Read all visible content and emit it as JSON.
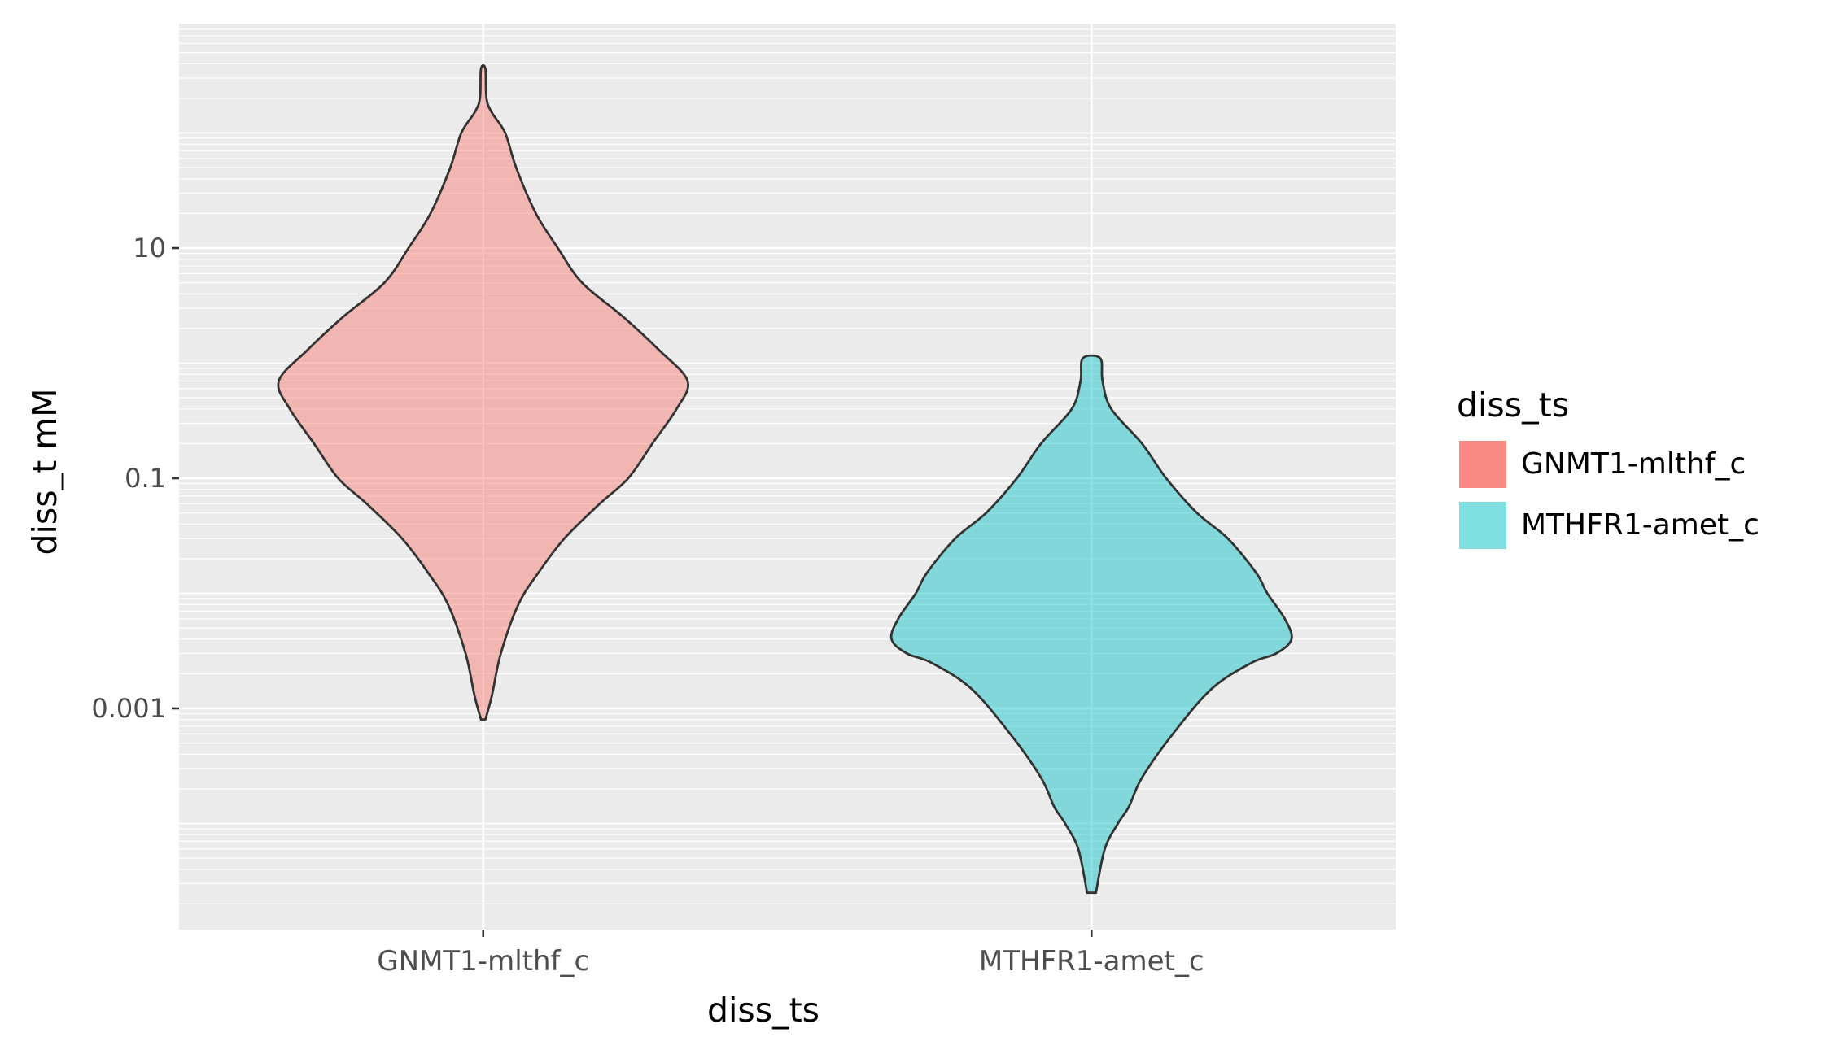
{
  "chart_data": {
    "type": "violin",
    "title": "",
    "xlabel": "diss_ts",
    "ylabel": "diss_t mM",
    "y_scale": "log10",
    "ylim": [
      1e-05,
      1000
    ],
    "y_ticks": [
      {
        "value": 10,
        "label": "10"
      },
      {
        "value": 0.1,
        "label": "0.1"
      },
      {
        "value": 0.001,
        "label": "0.001"
      }
    ],
    "categories": [
      "GNMT1-mlthf_c",
      "MTHFR1-amet_c"
    ],
    "legend": {
      "title": "diss_ts",
      "position": "right"
    },
    "series": [
      {
        "name": "GNMT1-mlthf_c",
        "color": "#F8766D",
        "min": 0.0008,
        "max": 360,
        "profile": [
          [
            0.0008,
            0.01
          ],
          [
            0.0013,
            0.04
          ],
          [
            0.003,
            0.08
          ],
          [
            0.008,
            0.16
          ],
          [
            0.015,
            0.25
          ],
          [
            0.03,
            0.37
          ],
          [
            0.06,
            0.53
          ],
          [
            0.1,
            0.66
          ],
          [
            0.2,
            0.77
          ],
          [
            0.4,
            0.88
          ],
          [
            0.7,
            0.93
          ],
          [
            1.3,
            0.8
          ],
          [
            2.5,
            0.64
          ],
          [
            5,
            0.45
          ],
          [
            10,
            0.34
          ],
          [
            20,
            0.24
          ],
          [
            50,
            0.15
          ],
          [
            100,
            0.1
          ],
          [
            150,
            0.04
          ],
          [
            200,
            0.015
          ],
          [
            360,
            0.01
          ]
        ]
      },
      {
        "name": "MTHFR1-amet_c",
        "color": "#00BFC4",
        "min": 2.5e-05,
        "max": 1.1,
        "profile": [
          [
            2.5e-05,
            0.02
          ],
          [
            6e-05,
            0.06
          ],
          [
            0.0001,
            0.12
          ],
          [
            0.00014,
            0.17
          ],
          [
            0.00025,
            0.23
          ],
          [
            0.0006,
            0.37
          ],
          [
            0.0015,
            0.55
          ],
          [
            0.0025,
            0.73
          ],
          [
            0.003,
            0.84
          ],
          [
            0.004,
            0.91
          ],
          [
            0.006,
            0.88
          ],
          [
            0.01,
            0.8
          ],
          [
            0.015,
            0.75
          ],
          [
            0.03,
            0.62
          ],
          [
            0.05,
            0.48
          ],
          [
            0.1,
            0.34
          ],
          [
            0.2,
            0.23
          ],
          [
            0.4,
            0.09
          ],
          [
            0.7,
            0.05
          ],
          [
            1.1,
            0.04
          ]
        ]
      }
    ]
  }
}
